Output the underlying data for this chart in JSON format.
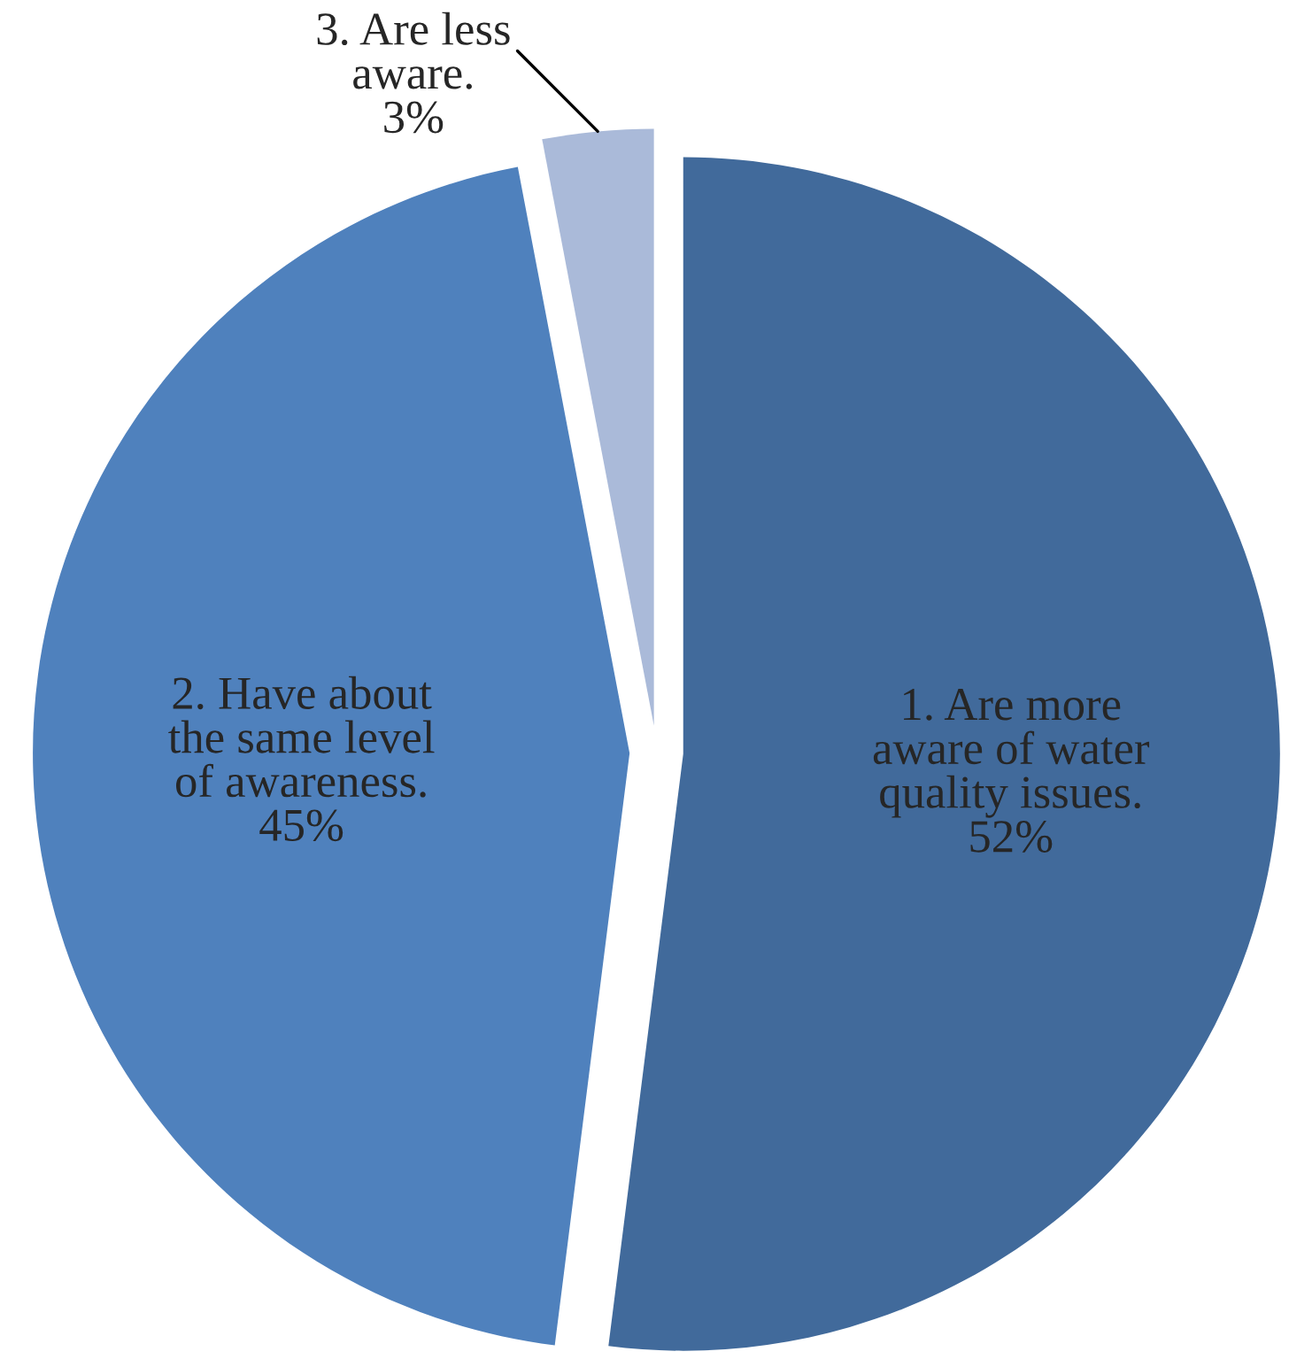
{
  "chart_data": {
    "type": "pie",
    "categories": [
      "1. Are more\naware of water\nquality issues.",
      "2. Have about\nthe same level\nof awareness.",
      "3. Are less\naware."
    ],
    "values": [
      52,
      45,
      3
    ],
    "value_labels": [
      "52%",
      "45%",
      "3%"
    ],
    "colors": [
      "#416a9b",
      "#4f81bd",
      "#aabad9"
    ]
  }
}
